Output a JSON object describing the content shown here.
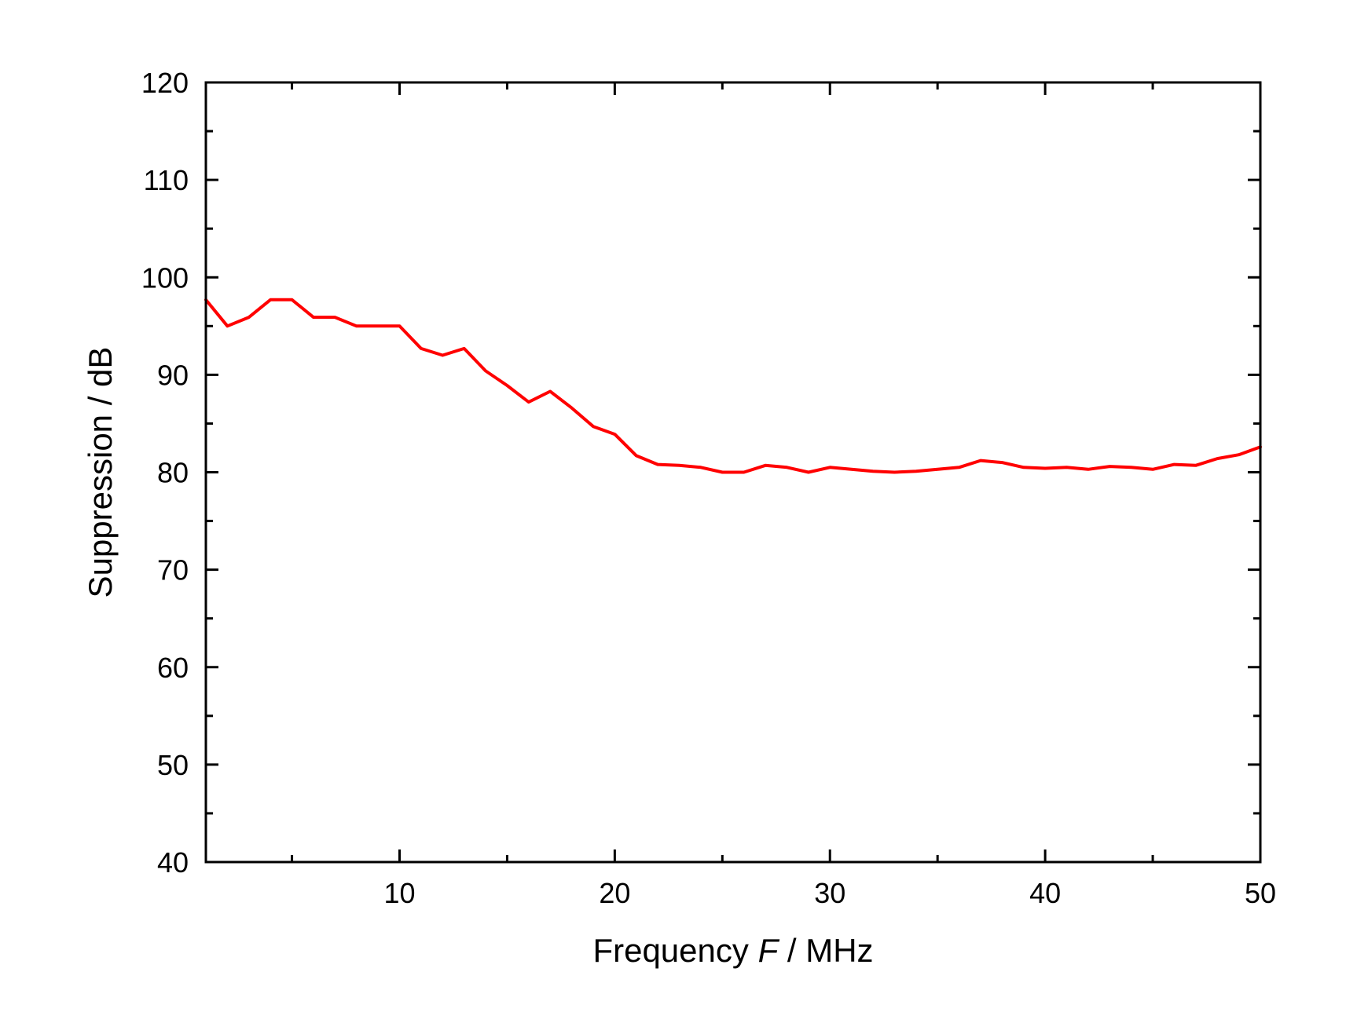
{
  "chart_data": {
    "type": "line",
    "title": "",
    "xlabel": {
      "prefix": "Frequency ",
      "symbol": "F",
      "suffix": " / MHz"
    },
    "ylabel": "Suppression / dB",
    "xlim": [
      1,
      50
    ],
    "ylim": [
      40,
      120
    ],
    "x_ticks": [
      10,
      20,
      30,
      40,
      50
    ],
    "x_minor_ticks": [
      5,
      15,
      25,
      35,
      45
    ],
    "y_ticks": [
      40,
      50,
      60,
      70,
      80,
      90,
      100,
      110,
      120
    ],
    "y_minor_ticks": [
      45,
      55,
      65,
      75,
      85,
      95,
      105,
      115
    ],
    "grid": false,
    "line_color": "#ff0000",
    "series": [
      {
        "x": [
          1,
          2,
          3,
          4,
          5,
          6,
          7,
          8,
          9,
          10,
          11,
          12,
          13,
          14,
          15,
          16,
          17,
          18,
          19,
          20,
          21,
          22,
          23,
          24,
          25,
          26,
          27,
          28,
          29,
          30,
          31,
          32,
          33,
          34,
          35,
          36,
          37,
          38,
          39,
          40,
          41,
          42,
          43,
          44,
          45,
          46,
          47,
          48,
          49,
          50
        ],
        "y": [
          97.7,
          95.0,
          95.9,
          97.7,
          97.7,
          95.9,
          95.9,
          95.0,
          95.0,
          95.0,
          92.7,
          92.0,
          92.7,
          90.4,
          88.9,
          87.2,
          88.3,
          86.6,
          84.7,
          83.9,
          81.7,
          80.8,
          80.7,
          80.5,
          80.0,
          80.0,
          80.7,
          80.5,
          80.0,
          80.5,
          80.3,
          80.1,
          80.0,
          80.1,
          80.3,
          80.5,
          81.2,
          81.0,
          80.5,
          80.4,
          80.5,
          80.3,
          80.6,
          80.5,
          80.3,
          80.8,
          80.7,
          81.4,
          81.8,
          82.6
        ]
      }
    ]
  }
}
